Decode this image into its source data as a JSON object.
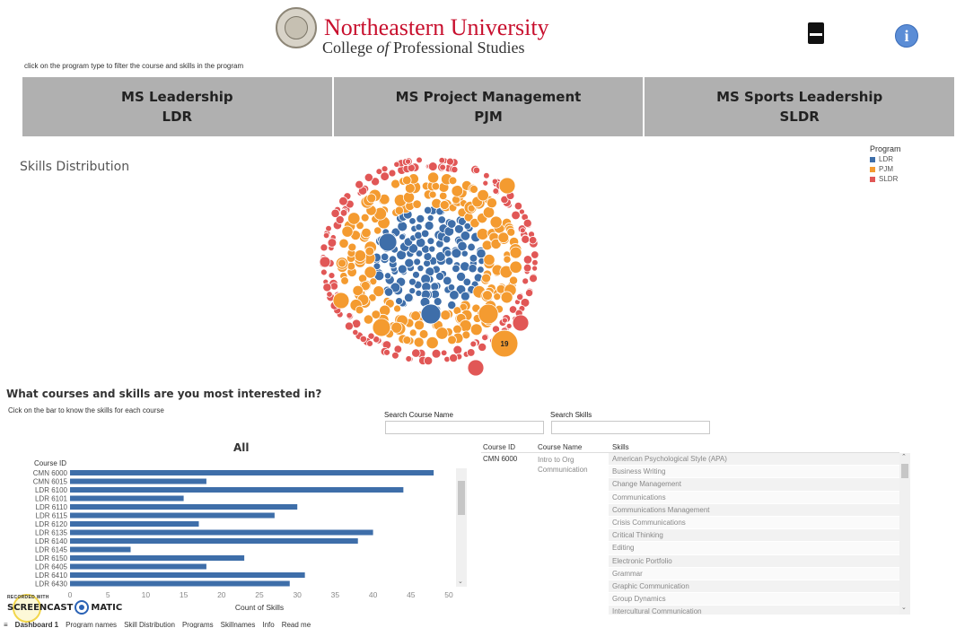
{
  "header": {
    "university": "Northeastern University",
    "college_prefix": "College ",
    "college_italic": "of",
    "college_suffix": " Professional Studies",
    "hint": "click on the program type to filter the course and skills in the program",
    "icons": [
      "university-seal-icon",
      "pdf-download-icon",
      "info-icon"
    ]
  },
  "programs": [
    {
      "name": "MS Leadership",
      "code": "LDR"
    },
    {
      "name": "MS Project Management",
      "code": "PJM"
    },
    {
      "name": "MS Sports Leadership",
      "code": "SLDR"
    }
  ],
  "skills_distribution": {
    "title": "Skills Distribution",
    "highlight_label": "19"
  },
  "legend": {
    "title": "Program",
    "items": [
      {
        "label": "LDR",
        "color": "#3e6ea9"
      },
      {
        "label": "PJM",
        "color": "#f49b30"
      },
      {
        "label": "SLDR",
        "color": "#e15756"
      }
    ]
  },
  "courses_section": {
    "title": "What courses and skills are you most interested in?",
    "hint": "Cick on the bar to know the skills for each course",
    "search_course_label": "Search Course Name",
    "search_skills_label": "Search Skills",
    "search_course_value": "",
    "search_skills_value": ""
  },
  "chart_data": {
    "type": "bar",
    "orientation": "horizontal",
    "title": "All",
    "ylabel": "Course ID",
    "xlabel": "Count of Skills",
    "categories": [
      "CMN 6000",
      "CMN 6015",
      "LDR 6100",
      "LDR 6101",
      "LDR 6110",
      "LDR 6115",
      "LDR 6120",
      "LDR 6135",
      "LDR 6140",
      "LDR 6145",
      "LDR 6150",
      "LDR 6405",
      "LDR 6410",
      "LDR 6430"
    ],
    "values": [
      48,
      18,
      44,
      15,
      30,
      27,
      17,
      40,
      38,
      8,
      23,
      18,
      31,
      29
    ],
    "xlim": [
      0,
      50
    ],
    "xticks": [
      0,
      5,
      10,
      15,
      20,
      25,
      30,
      35,
      40,
      45,
      50
    ],
    "color": "#3e6ea9",
    "grid": false
  },
  "table": {
    "headers": {
      "course_id": "Course ID",
      "course_name": "Course Name",
      "skills": "Skills"
    },
    "course_id": "CMN 6000",
    "course_name": "Intro to Org Communication",
    "skills": [
      "American Psychological Style (APA)",
      "Business Writing",
      "Change Management",
      "Communications",
      "Communications Management",
      "Crisis Communications",
      "Critical Thinking",
      "Editing",
      "Electronic Portfolio",
      "Grammar",
      "Graphic Communication",
      "Group Dynamics",
      "Intercultural Communication"
    ]
  },
  "tabs": {
    "items": [
      "Dashboard 1",
      "Program names",
      "Skill Distribution",
      "Programs",
      "Skillnames",
      "Info",
      "Read me"
    ],
    "active": "Dashboard 1",
    "prefix_icon": "≡"
  },
  "watermark": {
    "small": "RECORDED WITH",
    "left": "SCREENCAST",
    "right": "MATIC"
  }
}
